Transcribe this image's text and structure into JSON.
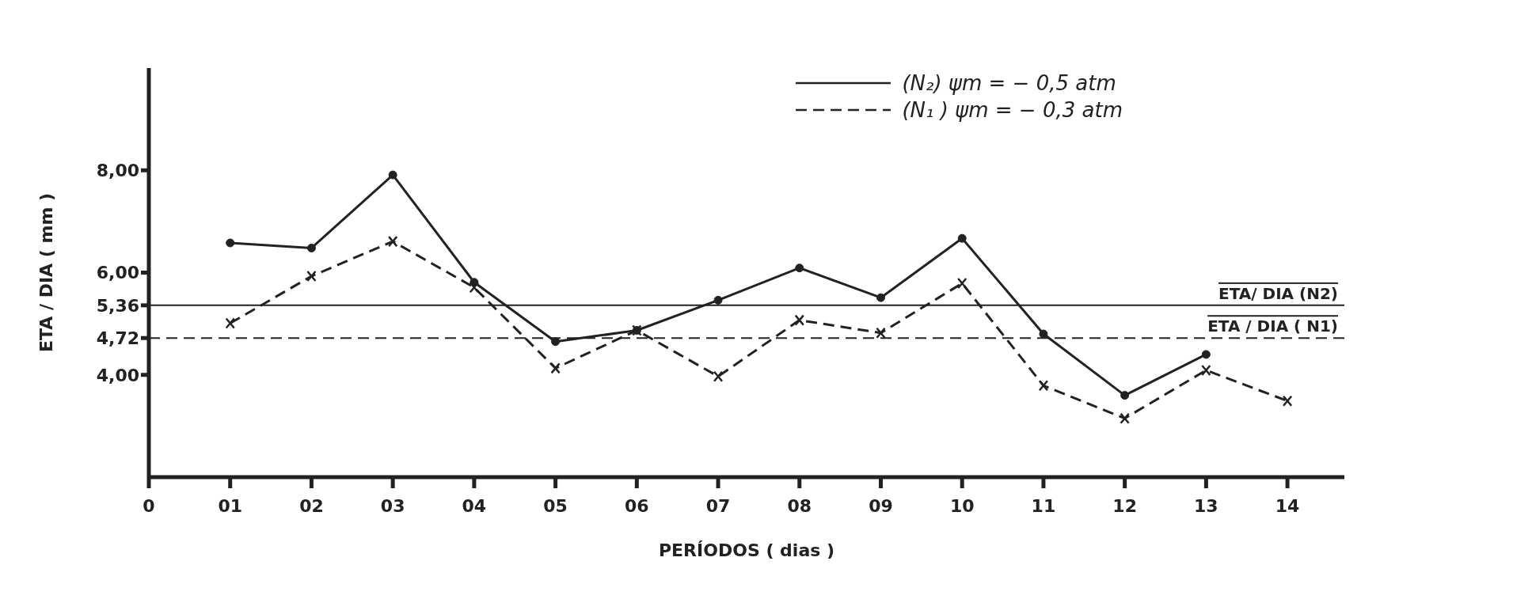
{
  "chart_data": {
    "type": "line",
    "xlabel": "PERÍODOS ( dias )",
    "ylabel": "ETA / DIA ( mm )",
    "legend": "top right",
    "x": [
      1,
      2,
      3,
      4,
      5,
      6,
      7,
      8,
      9,
      10,
      11,
      12,
      13,
      14
    ],
    "xlim": [
      0,
      14.7
    ],
    "xticks": [
      {
        "value": 0,
        "label": "0"
      },
      {
        "value": 1,
        "label": "01"
      },
      {
        "value": 2,
        "label": "02"
      },
      {
        "value": 3,
        "label": "03"
      },
      {
        "value": 4,
        "label": "04"
      },
      {
        "value": 5,
        "label": "05"
      },
      {
        "value": 6,
        "label": "06"
      },
      {
        "value": 7,
        "label": "07"
      },
      {
        "value": 8,
        "label": "08"
      },
      {
        "value": 9,
        "label": "09"
      },
      {
        "value": 10,
        "label": "10"
      },
      {
        "value": 11,
        "label": "11"
      },
      {
        "value": 12,
        "label": "12"
      },
      {
        "value": 13,
        "label": "13"
      },
      {
        "value": 14,
        "label": "14"
      }
    ],
    "ylim": [
      2,
      10
    ],
    "yticks": [
      {
        "value": 4,
        "label": "4,00"
      },
      {
        "value": 4.72,
        "label": "4,72"
      },
      {
        "value": 5.36,
        "label": "5,36"
      },
      {
        "value": 6,
        "label": "6,00"
      },
      {
        "value": 8,
        "label": "8,00"
      }
    ],
    "series": [
      {
        "name": "(N₂)  ψm = − 0,5 atm",
        "color": "#222222",
        "marker": "circle",
        "line_style": "solid",
        "values": [
          6.58,
          6.48,
          7.91,
          5.81,
          4.65,
          4.87,
          5.46,
          6.09,
          5.51,
          6.67,
          4.8,
          3.6,
          4.4,
          null
        ]
      },
      {
        "name": "(N₁ )  ψm = − 0,3 atm",
        "color": "#222222",
        "marker": "cross",
        "line_style": "dashed",
        "values": [
          5.01,
          5.93,
          6.61,
          5.71,
          4.13,
          4.87,
          3.97,
          5.07,
          4.82,
          5.79,
          3.79,
          3.15,
          4.09,
          3.49
        ]
      }
    ],
    "ref_lines": [
      {
        "axis": "y",
        "value": 5.36,
        "label": "ETA/ DIA (N2)",
        "line_style": "solid",
        "color": "#222222"
      },
      {
        "axis": "y",
        "value": 4.72,
        "label": "ETA / DIA ( N1)",
        "line_style": "dashed",
        "color": "#222222"
      }
    ]
  }
}
